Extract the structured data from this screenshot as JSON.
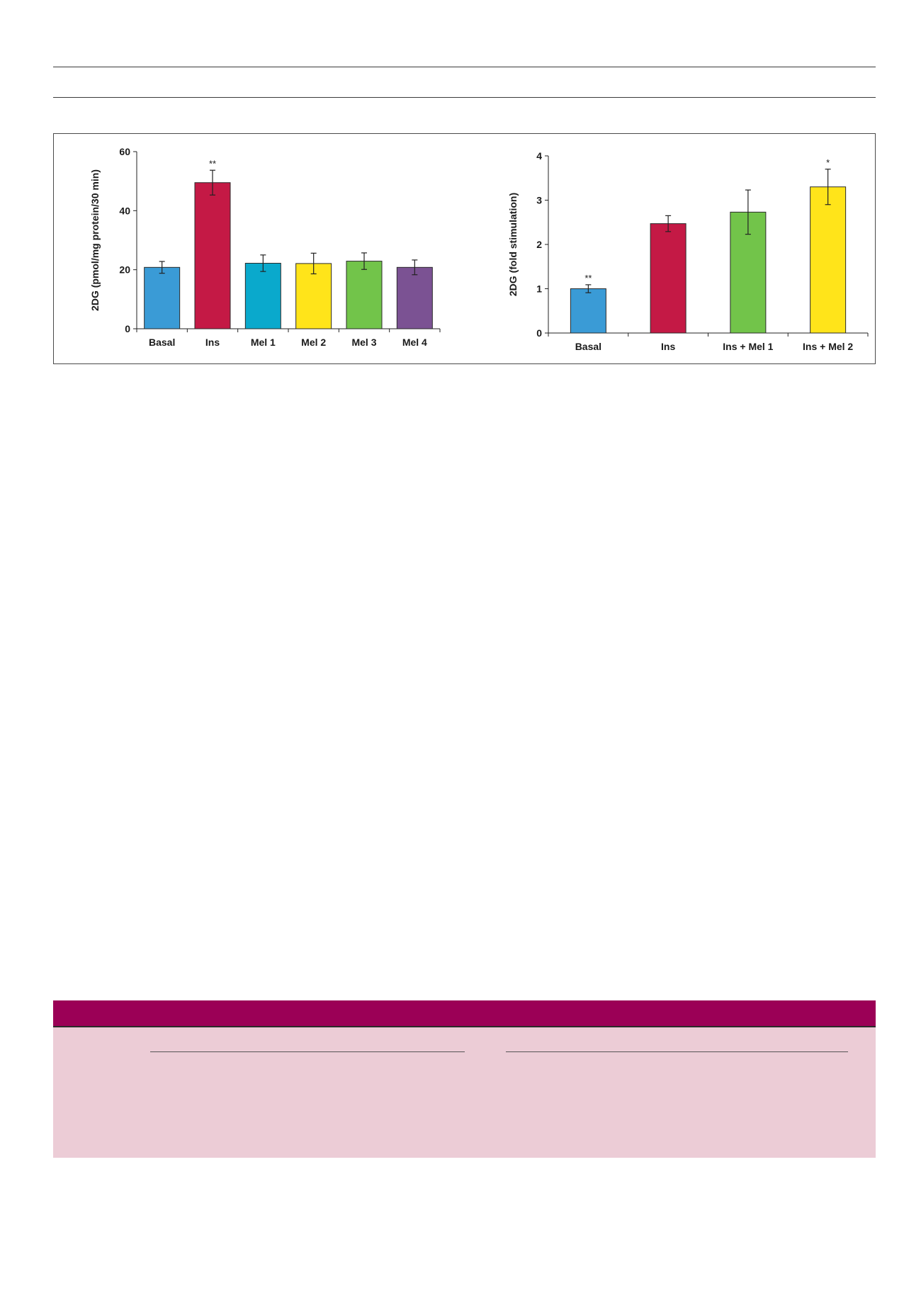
{
  "colors": {
    "blue": "#3a9bd6",
    "crimson": "#c41945",
    "teal": "#0aa9cc",
    "yellow": "#ffe41a",
    "green": "#72c44a",
    "purple": "#7b5293",
    "table_header": "#9b0056",
    "table_body": "#ecccd6"
  },
  "chart_data": [
    {
      "type": "bar",
      "ylabel": "2DG (pmol/mg protein/30 min)",
      "xlabel": "",
      "ylim": [
        0,
        60
      ],
      "yticks": [
        0,
        20,
        40,
        60
      ],
      "categories": [
        "Basal",
        "Ins",
        "Mel 1",
        "Mel 2",
        "Mel 3",
        "Mel 4"
      ],
      "values": [
        20.8,
        49.5,
        22.2,
        22.1,
        22.9,
        20.8
      ],
      "errors": [
        2.0,
        4.2,
        2.8,
        3.5,
        2.8,
        2.5
      ],
      "annotations": [
        "",
        "**",
        "",
        "",
        "",
        ""
      ],
      "colors": [
        "#3a9bd6",
        "#c41945",
        "#0aa9cc",
        "#ffe41a",
        "#72c44a",
        "#7b5293"
      ]
    },
    {
      "type": "bar",
      "ylabel": "2DG (fold stimulation)",
      "xlabel": "",
      "ylim": [
        0,
        4
      ],
      "yticks": [
        0,
        1,
        2,
        3,
        4
      ],
      "categories": [
        "Basal",
        "Ins",
        "Ins + Mel 1",
        "Ins + Mel 2"
      ],
      "values": [
        1.0,
        2.47,
        2.73,
        3.3
      ],
      "errors": [
        0.09,
        0.18,
        0.5,
        0.4
      ],
      "annotations": [
        "**",
        "",
        "",
        "*"
      ],
      "colors": [
        "#3a9bd6",
        "#c41945",
        "#72c44a",
        "#ffe41a"
      ]
    }
  ]
}
